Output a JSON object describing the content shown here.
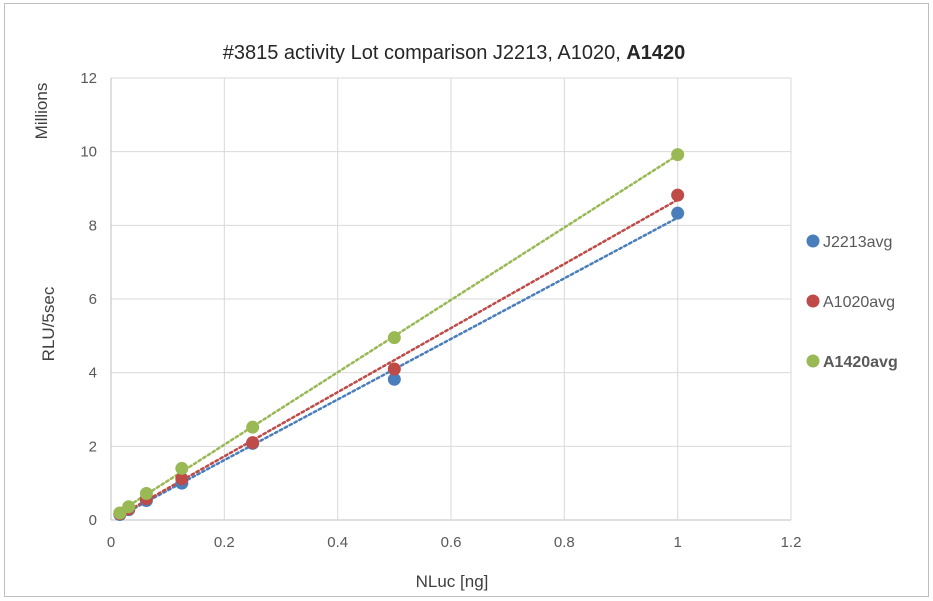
{
  "chart_data": {
    "type": "scatter",
    "title_parts": [
      "#3815 activity Lot comparison J2213, A1020, ",
      "A1420"
    ],
    "xlabel": "NLuc [ng]",
    "ylabel": "RLU/5sec",
    "yunit_label": "Millions",
    "xlim": [
      0,
      1.2
    ],
    "ylim": [
      0,
      12
    ],
    "xticks": [
      "0",
      "0.2",
      "0.4",
      "0.6",
      "0.8",
      "1",
      "1.2"
    ],
    "yticks": [
      "0",
      "2",
      "4",
      "6",
      "8",
      "10",
      "12"
    ],
    "grid": true,
    "legend_position": "right",
    "trendlines": "linear, dotted",
    "series": [
      {
        "name": "J2213avg",
        "color": "#4a7ebb",
        "x": [
          0.015625,
          0.03125,
          0.0625,
          0.125,
          0.25,
          0.5,
          1
        ],
        "y": [
          0.15,
          0.28,
          0.53,
          1.0,
          2.08,
          3.82,
          8.33
        ]
      },
      {
        "name": "A1020avg",
        "color": "#be4b48",
        "x": [
          0.015625,
          0.03125,
          0.0625,
          0.125,
          0.25,
          0.5,
          1
        ],
        "y": [
          0.17,
          0.3,
          0.58,
          1.12,
          2.1,
          4.1,
          8.82
        ]
      },
      {
        "name": "A1420avg",
        "color": "#98b954",
        "bold": true,
        "x": [
          0.015625,
          0.03125,
          0.0625,
          0.125,
          0.25,
          0.5,
          1
        ],
        "y": [
          0.19,
          0.36,
          0.72,
          1.4,
          2.52,
          4.95,
          9.92
        ]
      }
    ]
  }
}
